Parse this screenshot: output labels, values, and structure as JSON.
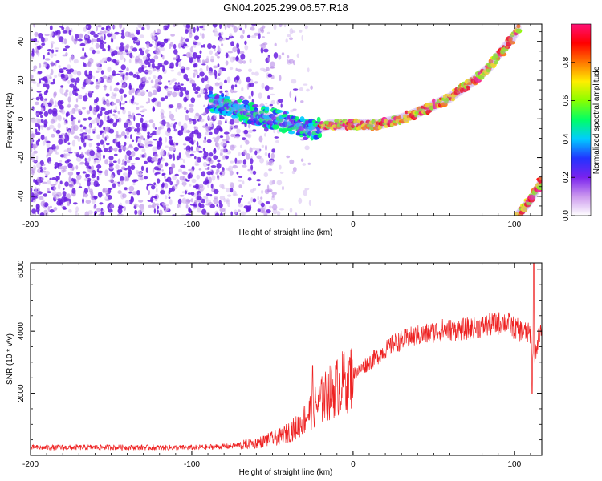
{
  "figure_title": "GN04.2025.299.06.57.R18",
  "chart_data": [
    {
      "type": "heatmap",
      "title": "",
      "xlabel": "Height of straight line (km)",
      "ylabel": "Frequency (Hz)",
      "xlim": [
        -200,
        117
      ],
      "ylim": [
        -50,
        49
      ],
      "xticks": [
        -200,
        -100,
        0,
        100
      ],
      "yticks": [
        -40,
        -20,
        0,
        20,
        40
      ],
      "xtick_labels": [
        "-200",
        "-100",
        "0",
        "100"
      ],
      "ytick_labels": [
        "-40",
        "-20",
        "0",
        "20",
        "40"
      ],
      "colorbar": {
        "label": "Normalized spectral amplitude",
        "range": [
          0,
          1
        ],
        "ticks": [
          0.0,
          0.2,
          0.4,
          0.6,
          0.8
        ],
        "tick_labels": [
          "0.0",
          "0.2",
          "0.4",
          "0.6",
          "0.8"
        ],
        "colors": [
          "#ffffff",
          "#cc99ee",
          "#7a22ee",
          "#2233ff",
          "#00ccff",
          "#00ff66",
          "#88ff00",
          "#ffee00",
          "#ff7700",
          "#ff0000",
          "#ff1177"
        ]
      },
      "ridge": {
        "x": [
          -88,
          -75,
          -60,
          -45,
          -30,
          -25,
          -15,
          0,
          15,
          30,
          45,
          60,
          75,
          85,
          90,
          100,
          103
        ],
        "y": [
          9,
          6,
          2,
          -1,
          -5,
          -6,
          -3,
          -3,
          -3,
          0,
          5,
          11,
          20,
          27,
          33,
          43,
          48
        ]
      },
      "ridge_upper_branch": {
        "x": [
          102,
          110,
          117
        ],
        "y": [
          -50,
          -42,
          -32
        ]
      },
      "noise_region_x": [
        -200,
        -40
      ],
      "grid": false
    },
    {
      "type": "line",
      "title": "",
      "xlabel": "Height of straight line (km)",
      "ylabel": "SNR (10 * v/v)",
      "xlim": [
        -200,
        117
      ],
      "ylim": [
        0,
        6200
      ],
      "xticks": [
        -200,
        -100,
        0,
        100
      ],
      "yticks": [
        2000,
        4000,
        6000
      ],
      "xtick_labels": [
        "-200",
        "-100",
        "0",
        "100"
      ],
      "ytick_labels": [
        "2000",
        "4000",
        "6000"
      ],
      "line_color": "#ee2222",
      "trend": {
        "x": [
          -200,
          -150,
          -100,
          -75,
          -60,
          -45,
          -35,
          -25,
          -15,
          -5,
          5,
          15,
          25,
          35,
          45,
          55,
          65,
          75,
          85,
          95,
          100,
          105,
          110,
          112,
          115,
          117
        ],
        "y": [
          250,
          260,
          250,
          300,
          400,
          600,
          900,
          1500,
          2000,
          2400,
          2800,
          3200,
          3600,
          3800,
          3900,
          4050,
          4050,
          4100,
          4200,
          4300,
          4100,
          4000,
          3900,
          3000,
          3800,
          4000
        ]
      },
      "spikes": [
        {
          "x": -25,
          "y": 2900
        },
        {
          "x": 112,
          "y": 6200
        },
        {
          "x": 111,
          "y": 2000
        }
      ],
      "grid": false
    }
  ]
}
